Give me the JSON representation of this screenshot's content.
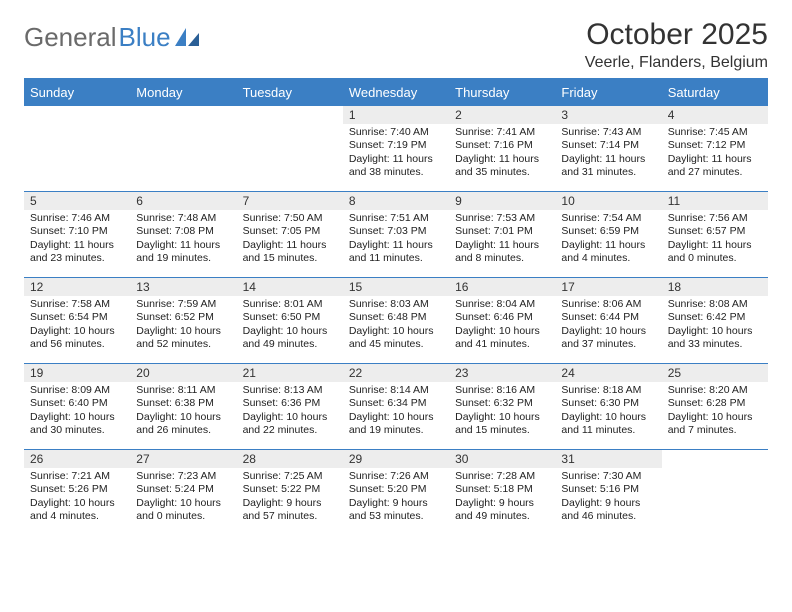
{
  "brand": {
    "part1": "General",
    "part2": "Blue"
  },
  "title": "October 2025",
  "location": "Veerle, Flanders, Belgium",
  "colors": {
    "accent": "#3b7fc4",
    "header_bg": "#3b7fc4",
    "header_text": "#ffffff",
    "daynum_bg": "#ededed",
    "text": "#333333",
    "body_text": "#222222",
    "logo_gray": "#6a6a6a",
    "page_bg": "#ffffff"
  },
  "typography": {
    "title_fontsize": 30,
    "location_fontsize": 16,
    "weekday_fontsize": 13,
    "daynum_fontsize": 12,
    "body_fontsize": 10.5
  },
  "weekdays": [
    "Sunday",
    "Monday",
    "Tuesday",
    "Wednesday",
    "Thursday",
    "Friday",
    "Saturday"
  ],
  "weeks": [
    [
      {
        "day": "",
        "sunrise": "",
        "sunset": "",
        "daylight": ""
      },
      {
        "day": "",
        "sunrise": "",
        "sunset": "",
        "daylight": ""
      },
      {
        "day": "",
        "sunrise": "",
        "sunset": "",
        "daylight": ""
      },
      {
        "day": "1",
        "sunrise": "Sunrise: 7:40 AM",
        "sunset": "Sunset: 7:19 PM",
        "daylight": "Daylight: 11 hours and 38 minutes."
      },
      {
        "day": "2",
        "sunrise": "Sunrise: 7:41 AM",
        "sunset": "Sunset: 7:16 PM",
        "daylight": "Daylight: 11 hours and 35 minutes."
      },
      {
        "day": "3",
        "sunrise": "Sunrise: 7:43 AM",
        "sunset": "Sunset: 7:14 PM",
        "daylight": "Daylight: 11 hours and 31 minutes."
      },
      {
        "day": "4",
        "sunrise": "Sunrise: 7:45 AM",
        "sunset": "Sunset: 7:12 PM",
        "daylight": "Daylight: 11 hours and 27 minutes."
      }
    ],
    [
      {
        "day": "5",
        "sunrise": "Sunrise: 7:46 AM",
        "sunset": "Sunset: 7:10 PM",
        "daylight": "Daylight: 11 hours and 23 minutes."
      },
      {
        "day": "6",
        "sunrise": "Sunrise: 7:48 AM",
        "sunset": "Sunset: 7:08 PM",
        "daylight": "Daylight: 11 hours and 19 minutes."
      },
      {
        "day": "7",
        "sunrise": "Sunrise: 7:50 AM",
        "sunset": "Sunset: 7:05 PM",
        "daylight": "Daylight: 11 hours and 15 minutes."
      },
      {
        "day": "8",
        "sunrise": "Sunrise: 7:51 AM",
        "sunset": "Sunset: 7:03 PM",
        "daylight": "Daylight: 11 hours and 11 minutes."
      },
      {
        "day": "9",
        "sunrise": "Sunrise: 7:53 AM",
        "sunset": "Sunset: 7:01 PM",
        "daylight": "Daylight: 11 hours and 8 minutes."
      },
      {
        "day": "10",
        "sunrise": "Sunrise: 7:54 AM",
        "sunset": "Sunset: 6:59 PM",
        "daylight": "Daylight: 11 hours and 4 minutes."
      },
      {
        "day": "11",
        "sunrise": "Sunrise: 7:56 AM",
        "sunset": "Sunset: 6:57 PM",
        "daylight": "Daylight: 11 hours and 0 minutes."
      }
    ],
    [
      {
        "day": "12",
        "sunrise": "Sunrise: 7:58 AM",
        "sunset": "Sunset: 6:54 PM",
        "daylight": "Daylight: 10 hours and 56 minutes."
      },
      {
        "day": "13",
        "sunrise": "Sunrise: 7:59 AM",
        "sunset": "Sunset: 6:52 PM",
        "daylight": "Daylight: 10 hours and 52 minutes."
      },
      {
        "day": "14",
        "sunrise": "Sunrise: 8:01 AM",
        "sunset": "Sunset: 6:50 PM",
        "daylight": "Daylight: 10 hours and 49 minutes."
      },
      {
        "day": "15",
        "sunrise": "Sunrise: 8:03 AM",
        "sunset": "Sunset: 6:48 PM",
        "daylight": "Daylight: 10 hours and 45 minutes."
      },
      {
        "day": "16",
        "sunrise": "Sunrise: 8:04 AM",
        "sunset": "Sunset: 6:46 PM",
        "daylight": "Daylight: 10 hours and 41 minutes."
      },
      {
        "day": "17",
        "sunrise": "Sunrise: 8:06 AM",
        "sunset": "Sunset: 6:44 PM",
        "daylight": "Daylight: 10 hours and 37 minutes."
      },
      {
        "day": "18",
        "sunrise": "Sunrise: 8:08 AM",
        "sunset": "Sunset: 6:42 PM",
        "daylight": "Daylight: 10 hours and 33 minutes."
      }
    ],
    [
      {
        "day": "19",
        "sunrise": "Sunrise: 8:09 AM",
        "sunset": "Sunset: 6:40 PM",
        "daylight": "Daylight: 10 hours and 30 minutes."
      },
      {
        "day": "20",
        "sunrise": "Sunrise: 8:11 AM",
        "sunset": "Sunset: 6:38 PM",
        "daylight": "Daylight: 10 hours and 26 minutes."
      },
      {
        "day": "21",
        "sunrise": "Sunrise: 8:13 AM",
        "sunset": "Sunset: 6:36 PM",
        "daylight": "Daylight: 10 hours and 22 minutes."
      },
      {
        "day": "22",
        "sunrise": "Sunrise: 8:14 AM",
        "sunset": "Sunset: 6:34 PM",
        "daylight": "Daylight: 10 hours and 19 minutes."
      },
      {
        "day": "23",
        "sunrise": "Sunrise: 8:16 AM",
        "sunset": "Sunset: 6:32 PM",
        "daylight": "Daylight: 10 hours and 15 minutes."
      },
      {
        "day": "24",
        "sunrise": "Sunrise: 8:18 AM",
        "sunset": "Sunset: 6:30 PM",
        "daylight": "Daylight: 10 hours and 11 minutes."
      },
      {
        "day": "25",
        "sunrise": "Sunrise: 8:20 AM",
        "sunset": "Sunset: 6:28 PM",
        "daylight": "Daylight: 10 hours and 7 minutes."
      }
    ],
    [
      {
        "day": "26",
        "sunrise": "Sunrise: 7:21 AM",
        "sunset": "Sunset: 5:26 PM",
        "daylight": "Daylight: 10 hours and 4 minutes."
      },
      {
        "day": "27",
        "sunrise": "Sunrise: 7:23 AM",
        "sunset": "Sunset: 5:24 PM",
        "daylight": "Daylight: 10 hours and 0 minutes."
      },
      {
        "day": "28",
        "sunrise": "Sunrise: 7:25 AM",
        "sunset": "Sunset: 5:22 PM",
        "daylight": "Daylight: 9 hours and 57 minutes."
      },
      {
        "day": "29",
        "sunrise": "Sunrise: 7:26 AM",
        "sunset": "Sunset: 5:20 PM",
        "daylight": "Daylight: 9 hours and 53 minutes."
      },
      {
        "day": "30",
        "sunrise": "Sunrise: 7:28 AM",
        "sunset": "Sunset: 5:18 PM",
        "daylight": "Daylight: 9 hours and 49 minutes."
      },
      {
        "day": "31",
        "sunrise": "Sunrise: 7:30 AM",
        "sunset": "Sunset: 5:16 PM",
        "daylight": "Daylight: 9 hours and 46 minutes."
      },
      {
        "day": "",
        "sunrise": "",
        "sunset": "",
        "daylight": ""
      }
    ]
  ]
}
